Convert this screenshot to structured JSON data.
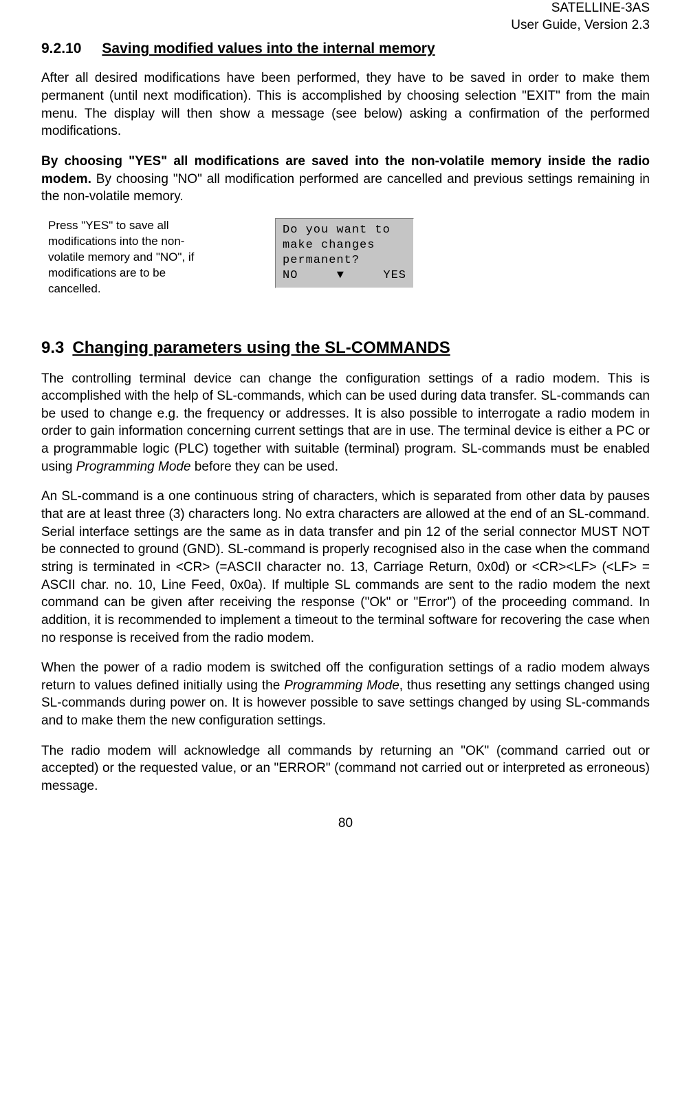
{
  "header": {
    "line1": "SATELLINE-3AS",
    "line2": "User Guide, Version 2.3"
  },
  "section_9_2_10": {
    "number": "9.2.10",
    "title": "Saving modified values into the internal memory",
    "para1": "After all desired modifications have been performed, they have to be saved in order to make them permanent (until next modification). This is accomplished by choosing selection \"EXIT\" from the main menu. The display will then show a message (see below) asking a confirmation of the performed modifications.",
    "para2_bold": "By choosing \"YES\" all modifications are saved into the non-volatile memory inside the radio modem.",
    "para2_rest": " By choosing \"NO\" all modification performed are cancelled and previous settings remaining in the non-volatile memory.",
    "caption": "Press \"YES\" to save all modifications into the non-volatile memory and \"NO\", if modifications are to be cancelled.",
    "lcd": {
      "line1": "Do you want to",
      "line2": "make changes",
      "line3": "permanent?",
      "no": "NO",
      "arrow": "▼",
      "yes": "YES"
    }
  },
  "section_9_3": {
    "number": "9.3",
    "title": "Changing parameters using the SL-COMMANDS",
    "para1_a": "The controlling terminal device can change the configuration settings of a radio modem. This is accomplished with the help of SL-commands, which can be used during data transfer. SL-commands can be used to change e.g. the frequency or addresses. It is also possible to interrogate a radio modem in order to gain information concerning current settings that are in use. The terminal device is either a PC or a programmable logic (PLC) together with suitable (terminal) program. SL-commands must be enabled using ",
    "para1_italic": "Programming Mode",
    "para1_b": " before they can be used.",
    "para2": "An SL-command is a one continuous string of characters, which is separated from other data by pauses that are at least three (3) characters long. No extra characters are allowed at the end of an SL-command. Serial interface settings are the same as in data transfer and pin 12 of the serial connector MUST NOT be connected to ground (GND). SL-command is properly recognised also in the case when the command string is terminated in <CR> (=ASCII character no. 13, Carriage Return, 0x0d) or <CR><LF> (<LF> = ASCII char. no. 10, Line Feed, 0x0a). If multiple SL commands are sent to the radio modem the next command can be given after receiving the response (\"Ok\" or \"Error\") of the proceeding command. In addition, it is recommended to implement a timeout to the terminal software for recovering the case when no response is received from the radio modem.",
    "para3_a": "When the power of a radio modem is switched off the configuration settings of a radio modem always return to values defined initially using the ",
    "para3_italic": "Programming Mode",
    "para3_b": ", thus resetting any settings changed using SL-commands during power on. It is however possible to save settings changed by using SL-commands and to make them the new configuration settings.",
    "para4_a": "The radio modem will acknowledge all commands by returning an \"",
    "para4_ok": "OK",
    "para4_b": "\" (command carried out or accepted) or the requested value, or an \"",
    "para4_err": "ERROR",
    "para4_c": "\" (command not carried out or interpreted as erroneous) message."
  },
  "page_number": "80"
}
